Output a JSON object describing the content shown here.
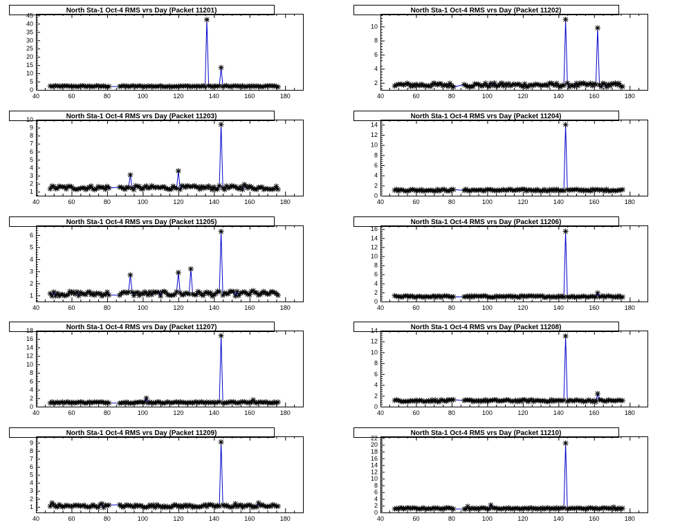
{
  "chart_data": [
    {
      "type": "line",
      "title": "North Sta-1 Oct-4 RMS vrs Day (Packet 11201)",
      "xlim": [
        40,
        190
      ],
      "ylim": [
        0,
        46
      ],
      "xticks": [
        40,
        60,
        80,
        100,
        120,
        140,
        160,
        180
      ],
      "yticks": [
        0,
        5,
        10,
        15,
        20,
        25,
        30,
        35,
        40,
        45
      ],
      "baseline": 2.2,
      "peaks": [
        {
          "x": 136,
          "y": 42.5
        },
        {
          "x": 144,
          "y": 13.5
        }
      ]
    },
    {
      "type": "line",
      "title": "North Sta-1 Oct-4 RMS vrs Day (Packet 11202)",
      "xlim": [
        40,
        190
      ],
      "ylim": [
        1,
        11.8
      ],
      "xticks": [
        40,
        60,
        80,
        100,
        120,
        140,
        160,
        180
      ],
      "yticks": [
        2,
        4,
        6,
        8,
        10
      ],
      "baseline": 1.7,
      "peaks": [
        {
          "x": 144,
          "y": 11.0
        },
        {
          "x": 162,
          "y": 9.8
        }
      ]
    },
    {
      "type": "line",
      "title": "North Sta-1 Oct-4 RMS vrs Day (Packet 11203)",
      "xlim": [
        40,
        190
      ],
      "ylim": [
        0.5,
        10
      ],
      "xticks": [
        40,
        60,
        80,
        100,
        120,
        140,
        160,
        180
      ],
      "yticks": [
        1,
        2,
        3,
        4,
        5,
        6,
        7,
        8,
        9,
        10
      ],
      "baseline": 1.5,
      "peaks": [
        {
          "x": 93,
          "y": 3.1
        },
        {
          "x": 120,
          "y": 3.6
        },
        {
          "x": 144,
          "y": 9.4
        },
        {
          "x": 157,
          "y": 1.9
        }
      ]
    },
    {
      "type": "line",
      "title": "North Sta-1 Oct-4 RMS vrs Day (Packet 11204)",
      "xlim": [
        40,
        190
      ],
      "ylim": [
        0,
        15
      ],
      "xticks": [
        40,
        60,
        80,
        100,
        120,
        140,
        160,
        180
      ],
      "yticks": [
        0,
        2,
        4,
        6,
        8,
        10,
        12,
        14
      ],
      "baseline": 1.1,
      "peaks": [
        {
          "x": 144,
          "y": 14.0
        }
      ]
    },
    {
      "type": "line",
      "title": "North Sta-1 Oct-4 RMS vrs Day (Packet 11205)",
      "xlim": [
        40,
        190
      ],
      "ylim": [
        0.5,
        6.8
      ],
      "xticks": [
        40,
        60,
        80,
        100,
        120,
        140,
        160,
        180
      ],
      "yticks": [
        1,
        2,
        3,
        4,
        5,
        6
      ],
      "baseline": 1.15,
      "peaks": [
        {
          "x": 93,
          "y": 2.7
        },
        {
          "x": 120,
          "y": 2.9
        },
        {
          "x": 127,
          "y": 3.2
        },
        {
          "x": 144,
          "y": 6.3
        },
        {
          "x": 162,
          "y": 1.4
        }
      ]
    },
    {
      "type": "line",
      "title": "North Sta-1 Oct-4 RMS vrs Day (Packet 11206)",
      "xlim": [
        40,
        190
      ],
      "ylim": [
        0,
        16.8
      ],
      "xticks": [
        40,
        60,
        80,
        100,
        120,
        140,
        160,
        180
      ],
      "yticks": [
        0,
        2,
        4,
        6,
        8,
        10,
        12,
        14,
        16
      ],
      "baseline": 1.1,
      "peaks": [
        {
          "x": 144,
          "y": 15.5
        },
        {
          "x": 162,
          "y": 1.9
        }
      ]
    },
    {
      "type": "line",
      "title": "North Sta-1 Oct-4 RMS vrs Day (Packet 11207)",
      "xlim": [
        40,
        190
      ],
      "ylim": [
        0,
        18
      ],
      "xticks": [
        40,
        60,
        80,
        100,
        120,
        140,
        160,
        180
      ],
      "yticks": [
        0,
        2,
        4,
        6,
        8,
        10,
        12,
        14,
        16,
        18
      ],
      "baseline": 1.0,
      "peaks": [
        {
          "x": 102,
          "y": 2.0
        },
        {
          "x": 144,
          "y": 16.8
        },
        {
          "x": 162,
          "y": 1.6
        }
      ]
    },
    {
      "type": "line",
      "title": "North Sta-1 Oct-4 RMS vrs Day (Packet 11208)",
      "xlim": [
        40,
        190
      ],
      "ylim": [
        0,
        14
      ],
      "xticks": [
        40,
        60,
        80,
        100,
        120,
        140,
        160,
        180
      ],
      "yticks": [
        0,
        2,
        4,
        6,
        8,
        10,
        12,
        14
      ],
      "baseline": 1.1,
      "peaks": [
        {
          "x": 144,
          "y": 13.0
        },
        {
          "x": 162,
          "y": 2.4
        }
      ]
    },
    {
      "type": "line",
      "title": "North Sta-1 Oct-4 RMS vrs Day (Packet 11209)",
      "xlim": [
        40,
        190
      ],
      "ylim": [
        0.3,
        9.8
      ],
      "xticks": [
        40,
        60,
        80,
        100,
        120,
        140,
        160,
        180
      ],
      "yticks": [
        1,
        2,
        3,
        4,
        5,
        6,
        7,
        8,
        9
      ],
      "baseline": 1.1,
      "peaks": [
        {
          "x": 49,
          "y": 1.5
        },
        {
          "x": 77,
          "y": 1.4
        },
        {
          "x": 144,
          "y": 9.1
        },
        {
          "x": 152,
          "y": 1.4
        },
        {
          "x": 165,
          "y": 1.5
        }
      ]
    },
    {
      "type": "line",
      "title": "North Sta-1 Oct-4 RMS vrs Day (Packet 11210)",
      "xlim": [
        40,
        190
      ],
      "ylim": [
        0,
        22.5
      ],
      "xticks": [
        40,
        60,
        80,
        100,
        120,
        140,
        160,
        180
      ],
      "yticks": [
        0,
        2,
        4,
        6,
        8,
        10,
        12,
        14,
        16,
        18,
        20,
        22
      ],
      "baseline": 1.2,
      "peaks": [
        {
          "x": 89,
          "y": 1.8
        },
        {
          "x": 102,
          "y": 2.2
        },
        {
          "x": 144,
          "y": 20.5
        },
        {
          "x": 171,
          "y": 1.6
        }
      ]
    }
  ]
}
